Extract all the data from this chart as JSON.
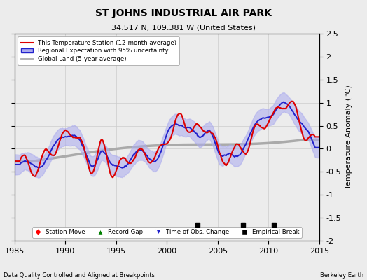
{
  "title": "ST JOHNS INDUSTRIAL AIR PARK",
  "subtitle": "34.517 N, 109.381 W (United States)",
  "xlabel_left": "Data Quality Controlled and Aligned at Breakpoints",
  "xlabel_right": "Berkeley Earth",
  "ylabel": "Temperature Anomaly (°C)",
  "xlim": [
    1985,
    2015
  ],
  "ylim": [
    -2,
    2.5
  ],
  "yticks": [
    -2,
    -1.5,
    -1,
    -0.5,
    0,
    0.5,
    1,
    1.5,
    2,
    2.5
  ],
  "xticks": [
    1985,
    1990,
    1995,
    2000,
    2005,
    2010,
    2015
  ],
  "empirical_breaks": [
    2003.0,
    2007.5,
    2010.5
  ],
  "bg_color": "#ececec",
  "station_color": "#dd0000",
  "regional_color": "#2222cc",
  "regional_fill_color": "#aaaaee",
  "global_color": "#aaaaaa",
  "legend_label_station": "This Temperature Station (12-month average)",
  "legend_label_regional": "Regional Expectation with 95% uncertainty",
  "legend_label_global": "Global Land (5-year average)",
  "legend_label_station_move": "Station Move",
  "legend_label_record_gap": "Record Gap",
  "legend_label_obs_change": "Time of Obs. Change",
  "legend_label_empirical": "Empirical Break"
}
